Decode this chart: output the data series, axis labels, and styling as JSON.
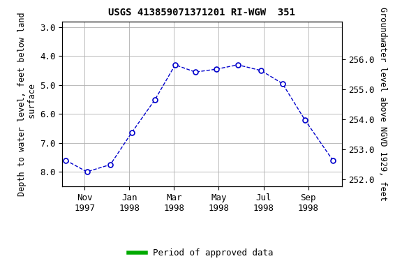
{
  "title": "USGS 413859071371201 RI-WGW  351",
  "ylabel_left": "Depth to water level, feet below land\n surface",
  "ylabel_right": "Groundwater level above NGVD 1929, feet",
  "data_x": [
    0.15,
    1.1,
    2.15,
    3.1,
    4.15,
    5.05,
    5.95,
    6.9,
    7.85,
    8.9,
    9.85,
    10.85,
    12.1
  ],
  "data_y": [
    7.6,
    8.0,
    7.75,
    6.65,
    5.5,
    4.3,
    4.55,
    4.45,
    4.3,
    4.5,
    4.95,
    6.2,
    7.6
  ],
  "xlim": [
    0,
    12.5
  ],
  "ylim_left": [
    8.5,
    2.8
  ],
  "ylim_right": [
    251.76,
    257.26
  ],
  "xtick_positions": [
    1,
    3,
    5,
    7,
    9,
    11
  ],
  "xtick_labels": [
    "Nov\n1997",
    "Jan\n1998",
    "Mar\n1998",
    "May\n1998",
    "Jul\n1998",
    "Sep\n1998"
  ],
  "yticks_left": [
    3.0,
    4.0,
    5.0,
    6.0,
    7.0,
    8.0
  ],
  "yticks_right": [
    252.0,
    253.0,
    254.0,
    255.0,
    256.0
  ],
  "line_color": "#0000cc",
  "green_bar_color": "#00aa00",
  "grid_color": "#b0b0b0",
  "title_fontsize": 10,
  "axis_label_fontsize": 8.5,
  "tick_fontsize": 9,
  "legend_label": "Period of approved data"
}
